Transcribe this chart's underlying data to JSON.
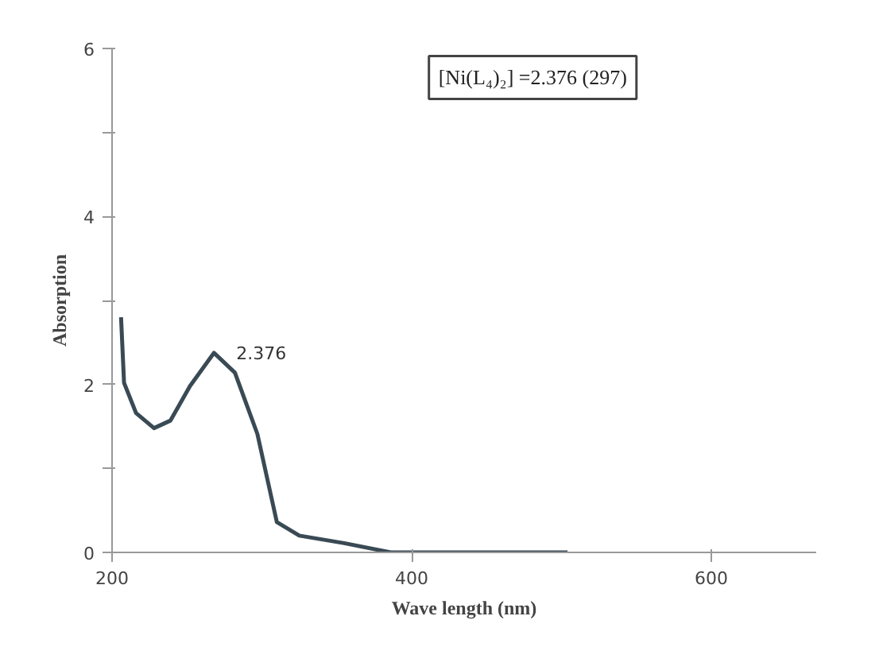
{
  "chart_data": {
    "type": "line",
    "xlabel": "Wave length (nm)",
    "ylabel": "Absorption",
    "x": [
      206,
      208,
      216,
      228,
      239,
      252,
      268,
      282,
      297,
      310,
      325,
      355,
      386,
      504
    ],
    "series": [
      {
        "color": "#3a4a55",
        "values": [
          2.8,
          2.02,
          1.66,
          1.48,
          1.57,
          1.98,
          2.376,
          2.14,
          1.41,
          0.36,
          0.2,
          0.11,
          0.0,
          0.0
        ]
      }
    ],
    "xlim": [
      200,
      670
    ],
    "xticks": [
      200,
      400,
      600
    ],
    "ylim": [
      0,
      6
    ],
    "yticks": [
      0,
      {
        "value": 1,
        "label": null
      },
      2,
      {
        "value": 3,
        "label": null
      },
      4,
      {
        "value": 5,
        "label": null
      },
      6
    ],
    "annotations": [
      {
        "text": "2.376",
        "x": 268,
        "y": 2.376
      },
      "[Ni(L₄)₂] =2.376 (297)"
    ],
    "grid": false,
    "marker": "none",
    "line_style": "solid"
  }
}
